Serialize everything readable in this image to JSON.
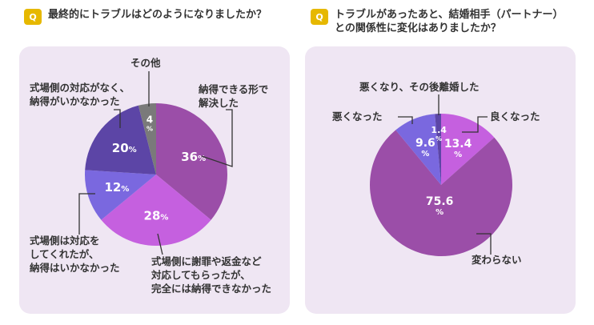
{
  "question1": {
    "badge": "Q",
    "text": "最終的にトラブルはどのようになりましたか？"
  },
  "question2": {
    "badge": "Q",
    "lines": [
      "トラブルがあったあと、結婚相手（パートナー）",
      "との関係性に変化はありましたか？"
    ]
  },
  "chart_data": [
    {
      "type": "pie",
      "unit": "%",
      "slices": [
        {
          "label_lines": [
            "納得できる形で",
            "解決した"
          ],
          "value": 36,
          "color": "#9b4ea8"
        },
        {
          "label_lines": [
            "式場側に謝罪や返金など",
            "対応してもらったが、",
            "完全には納得できなかった"
          ],
          "value": 28,
          "color": "#c560df"
        },
        {
          "label_lines": [
            "式場側は対応を",
            "してくれたが、",
            "納得はいかなかった"
          ],
          "value": 12,
          "color": "#7a68df"
        },
        {
          "label_lines": [
            "式場側の対応がなく、",
            "納得がいかなかった"
          ],
          "value": 20,
          "color": "#5c45a6"
        },
        {
          "label_lines": [
            "その他"
          ],
          "value": 4,
          "color": "#7a7a7a"
        }
      ]
    },
    {
      "type": "pie",
      "unit": "%",
      "slices": [
        {
          "label_lines": [
            "良くなった"
          ],
          "value": 13.4,
          "color": "#c560df"
        },
        {
          "label_lines": [
            "変わらない"
          ],
          "value": 75.6,
          "color": "#9b4ea8"
        },
        {
          "label_lines": [
            "悪くなった"
          ],
          "value": 9.6,
          "color": "#7a68df"
        },
        {
          "label_lines": [
            "悪くなり、その後離婚した"
          ],
          "value": 1.4,
          "color": "#5c45a6"
        }
      ]
    }
  ]
}
